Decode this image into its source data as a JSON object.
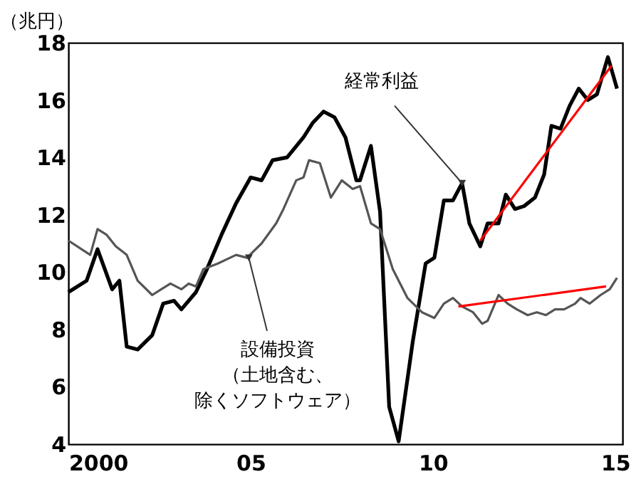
{
  "chart_data": {
    "type": "line",
    "ylabel": "（兆円）",
    "xlim": [
      2000,
      2015.2
    ],
    "xticks": [
      {
        "value": 2000,
        "label": "2000"
      },
      {
        "value": 2005,
        "label": "05"
      },
      {
        "value": 2010,
        "label": "10"
      },
      {
        "value": 2015,
        "label": "15"
      }
    ],
    "ylim": [
      4,
      18
    ],
    "yticks": [
      4,
      6,
      8,
      10,
      12,
      14,
      16,
      18
    ],
    "grid": false,
    "marker": "none",
    "line_style": "solid",
    "series": [
      {
        "color": "#000000",
        "x": [
          2000.0,
          2000.5,
          2000.8,
          2001.2,
          2001.4,
          2001.6,
          2001.9,
          2002.3,
          2002.6,
          2002.9,
          2003.1,
          2003.5,
          2003.8,
          2004.2,
          2004.6,
          2005.0,
          2005.3,
          2005.6,
          2006.0,
          2006.45,
          2006.7,
          2007.0,
          2007.3,
          2007.6,
          2007.9,
          2008.0,
          2008.3,
          2008.55,
          2008.8,
          2009.06,
          2009.45,
          2009.8,
          2010.04,
          2010.3,
          2010.55,
          2010.8,
          2011.0,
          2011.3,
          2011.5,
          2011.8,
          2012.0,
          2012.25,
          2012.5,
          2012.8,
          2013.05,
          2013.25,
          2013.5,
          2013.75,
          2014.0,
          2014.25,
          2014.5,
          2014.8,
          2015.05
        ],
        "values": [
          9.3,
          9.7,
          10.8,
          9.4,
          9.7,
          7.4,
          7.3,
          7.8,
          8.9,
          9.0,
          8.7,
          9.3,
          10.1,
          11.3,
          12.4,
          13.3,
          13.2,
          13.9,
          14.0,
          14.7,
          15.2,
          15.6,
          15.4,
          14.7,
          13.2,
          13.2,
          14.4,
          12.1,
          5.3,
          4.1,
          7.6,
          10.3,
          10.5,
          12.5,
          12.5,
          13.1,
          11.7,
          10.9,
          11.7,
          11.7,
          12.7,
          12.2,
          12.3,
          12.6,
          13.4,
          15.1,
          15.0,
          15.8,
          16.4,
          16.0,
          16.2,
          17.5,
          16.4
        ]
      },
      {
        "color": "#555555",
        "x": [
          2000.0,
          2000.6,
          2000.8,
          2001.05,
          2001.3,
          2001.6,
          2001.9,
          2002.3,
          2002.55,
          2002.8,
          2003.1,
          2003.3,
          2003.5,
          2003.7,
          2004.1,
          2004.6,
          2004.9,
          2005.3,
          2005.7,
          2005.9,
          2006.25,
          2006.45,
          2006.6,
          2006.9,
          2007.2,
          2007.5,
          2007.8,
          2008.0,
          2008.3,
          2008.55,
          2008.9,
          2009.3,
          2009.7,
          2010.04,
          2010.3,
          2010.55,
          2010.8,
          2011.1,
          2011.35,
          2011.5,
          2011.8,
          2012.05,
          2012.3,
          2012.6,
          2012.85,
          2013.1,
          2013.35,
          2013.6,
          2013.9,
          2014.05,
          2014.3,
          2014.6,
          2014.85,
          2015.05
        ],
        "values": [
          11.1,
          10.6,
          11.5,
          11.3,
          10.9,
          10.6,
          9.7,
          9.2,
          9.4,
          9.6,
          9.4,
          9.6,
          9.5,
          10.1,
          10.3,
          10.6,
          10.5,
          11.0,
          11.7,
          12.2,
          13.2,
          13.3,
          13.9,
          13.8,
          12.6,
          13.2,
          12.9,
          13.0,
          11.7,
          11.5,
          10.1,
          9.1,
          8.6,
          8.4,
          8.9,
          9.1,
          8.8,
          8.6,
          8.2,
          8.3,
          9.2,
          8.9,
          8.7,
          8.5,
          8.6,
          8.5,
          8.7,
          8.7,
          8.9,
          9.1,
          8.9,
          9.2,
          9.4,
          9.8
        ]
      },
      {
        "color": "#ff0000",
        "x": [
          2011.3,
          2014.9
        ],
        "values": [
          11.1,
          17.2
        ]
      },
      {
        "color": "#ff0000",
        "x": [
          2010.7,
          2014.75
        ],
        "values": [
          8.8,
          9.5
        ]
      }
    ],
    "annotations": [
      {
        "text": "経常利益",
        "x": 2010.8,
        "y": 13.1
      },
      {
        "text": "設備投資（土地含む、除くソフトウェア）",
        "x": 2004.95,
        "y": 10.5
      }
    ]
  }
}
